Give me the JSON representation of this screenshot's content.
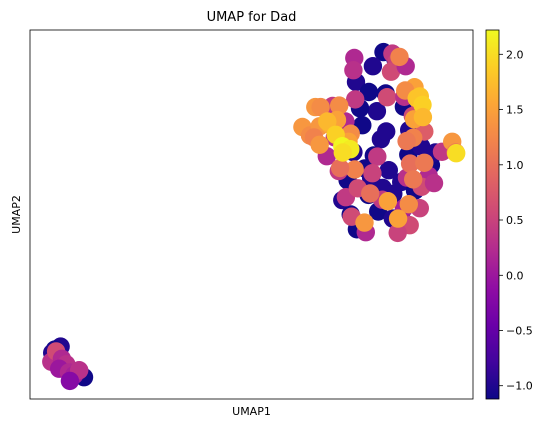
{
  "chart_data": {
    "type": "scatter",
    "title": "UMAP for Dad",
    "xlabel": "UMAP1",
    "ylabel": "UMAP2",
    "xlim": [
      0,
      100
    ],
    "ylim": [
      0,
      100
    ],
    "grid": false,
    "legend": "none",
    "colorbar": {
      "colormap": "plasma",
      "range": [
        -1.12,
        2.22
      ],
      "ticks": [
        -1.0,
        -0.5,
        0.0,
        0.5,
        1.0,
        1.5,
        2.0
      ],
      "tick_labels": [
        "−1.0",
        "−0.5",
        "0.0",
        "0.5",
        "1.0",
        "1.5",
        "2.0"
      ],
      "location": "right"
    },
    "points": [
      {
        "x": 6.9,
        "y": 14.2,
        "v": -1.0
      },
      {
        "x": 5.6,
        "y": 13.4,
        "v": -1.1
      },
      {
        "x": 5.0,
        "y": 12.5,
        "v": -1.0
      },
      {
        "x": 12.2,
        "y": 5.9,
        "v": -1.1
      },
      {
        "x": 4.8,
        "y": 10.1,
        "v": 0.3
      },
      {
        "x": 5.9,
        "y": 12.9,
        "v": 0.6
      },
      {
        "x": 7.2,
        "y": 10.9,
        "v": 0.2
      },
      {
        "x": 8.2,
        "y": 9.4,
        "v": 0.3
      },
      {
        "x": 6.6,
        "y": 8.2,
        "v": 0.0
      },
      {
        "x": 8.8,
        "y": 7.2,
        "v": 0.2
      },
      {
        "x": 10.0,
        "y": 6.5,
        "v": 0.1
      },
      {
        "x": 11.1,
        "y": 7.8,
        "v": 0.3
      },
      {
        "x": 9.0,
        "y": 4.9,
        "v": -0.2
      },
      {
        "x": 79.8,
        "y": 94.0,
        "v": -1.1
      },
      {
        "x": 77.4,
        "y": 90.2,
        "v": -1.0
      },
      {
        "x": 82.5,
        "y": 92.0,
        "v": -1.1
      },
      {
        "x": 73.6,
        "y": 85.9,
        "v": -1.0
      },
      {
        "x": 76.5,
        "y": 83.2,
        "v": -1.1
      },
      {
        "x": 78.3,
        "y": 78.0,
        "v": -1.0
      },
      {
        "x": 75.0,
        "y": 74.2,
        "v": -1.1
      },
      {
        "x": 79.2,
        "y": 70.4,
        "v": -1.0
      },
      {
        "x": 77.6,
        "y": 66.0,
        "v": -1.1
      },
      {
        "x": 81.0,
        "y": 62.0,
        "v": -1.0
      },
      {
        "x": 75.6,
        "y": 62.5,
        "v": -1.1
      },
      {
        "x": 79.6,
        "y": 57.2,
        "v": -1.0
      },
      {
        "x": 76.4,
        "y": 55.3,
        "v": -1.1
      },
      {
        "x": 82.0,
        "y": 55.6,
        "v": -1.0
      },
      {
        "x": 78.6,
        "y": 50.8,
        "v": -1.1
      },
      {
        "x": 81.9,
        "y": 48.9,
        "v": -1.0
      },
      {
        "x": 73.8,
        "y": 46.0,
        "v": -1.1
      },
      {
        "x": 83.8,
        "y": 58.8,
        "v": -1.0
      },
      {
        "x": 85.4,
        "y": 66.2,
        "v": -1.1
      },
      {
        "x": 88.3,
        "y": 68.4,
        "v": -1.0
      },
      {
        "x": 90.5,
        "y": 63.4,
        "v": -1.1
      },
      {
        "x": 91.5,
        "y": 66.8,
        "v": -1.0
      },
      {
        "x": 84.4,
        "y": 79.2,
        "v": -1.1
      },
      {
        "x": 85.6,
        "y": 72.9,
        "v": -1.0
      },
      {
        "x": 80.3,
        "y": 82.8,
        "v": -1.1
      },
      {
        "x": 73.0,
        "y": 66.9,
        "v": -1.0
      },
      {
        "x": 71.7,
        "y": 59.3,
        "v": -1.1
      },
      {
        "x": 70.5,
        "y": 53.9,
        "v": -1.0
      },
      {
        "x": 72.4,
        "y": 50.0,
        "v": -1.1
      },
      {
        "x": 84.8,
        "y": 47.5,
        "v": -1.0
      },
      {
        "x": 86.9,
        "y": 56.5,
        "v": -1.1
      },
      {
        "x": 80.4,
        "y": 72.5,
        "v": -1.0
      },
      {
        "x": 74.5,
        "y": 78.8,
        "v": -1.1
      },
      {
        "x": 77.0,
        "y": 60.0,
        "v": -1.0
      },
      {
        "x": 73.2,
        "y": 92.4,
        "v": 0.2
      },
      {
        "x": 81.8,
        "y": 93.6,
        "v": 0.4
      },
      {
        "x": 73.0,
        "y": 89.1,
        "v": 0.3
      },
      {
        "x": 82.7,
        "y": 91.3,
        "v": 0.5
      },
      {
        "x": 81.5,
        "y": 88.7,
        "v": 0.6
      },
      {
        "x": 84.8,
        "y": 90.2,
        "v": 0.2
      },
      {
        "x": 73.4,
        "y": 81.2,
        "v": 0.4
      },
      {
        "x": 80.6,
        "y": 81.8,
        "v": 0.6
      },
      {
        "x": 84.5,
        "y": 81.9,
        "v": 0.3
      },
      {
        "x": 88.0,
        "y": 80.0,
        "v": 0.4
      },
      {
        "x": 86.4,
        "y": 76.7,
        "v": 0.6
      },
      {
        "x": 89.0,
        "y": 72.5,
        "v": 0.8
      },
      {
        "x": 93.0,
        "y": 67.0,
        "v": 0.4
      },
      {
        "x": 90.0,
        "y": 60.5,
        "v": 0.2
      },
      {
        "x": 85.1,
        "y": 60.0,
        "v": 0.3
      },
      {
        "x": 88.4,
        "y": 57.5,
        "v": 0.6
      },
      {
        "x": 84.4,
        "y": 51.7,
        "v": 0.1
      },
      {
        "x": 88.0,
        "y": 51.7,
        "v": 0.5
      },
      {
        "x": 85.7,
        "y": 47.1,
        "v": 0.6
      },
      {
        "x": 83.0,
        "y": 45.0,
        "v": 0.5
      },
      {
        "x": 75.8,
        "y": 45.2,
        "v": 0.2
      },
      {
        "x": 72.6,
        "y": 49.4,
        "v": 0.6
      },
      {
        "x": 71.3,
        "y": 54.7,
        "v": 0.4
      },
      {
        "x": 74.0,
        "y": 57.1,
        "v": 0.6
      },
      {
        "x": 69.7,
        "y": 61.8,
        "v": 0.4
      },
      {
        "x": 67.0,
        "y": 65.8,
        "v": 0.2
      },
      {
        "x": 68.8,
        "y": 70.9,
        "v": 0.3
      },
      {
        "x": 71.2,
        "y": 75.2,
        "v": 0.2
      },
      {
        "x": 78.4,
        "y": 65.7,
        "v": 0.4
      },
      {
        "x": 77.3,
        "y": 61.2,
        "v": 0.5
      },
      {
        "x": 79.5,
        "y": 54.0,
        "v": 0.4
      },
      {
        "x": 68.3,
        "y": 79.4,
        "v": 0.4
      },
      {
        "x": 91.2,
        "y": 58.5,
        "v": 0.3
      },
      {
        "x": 83.4,
        "y": 92.7,
        "v": 1.2
      },
      {
        "x": 86.8,
        "y": 84.5,
        "v": 1.5
      },
      {
        "x": 84.7,
        "y": 83.6,
        "v": 1.3
      },
      {
        "x": 87.3,
        "y": 81.5,
        "v": 1.8
      },
      {
        "x": 86.7,
        "y": 75.8,
        "v": 1.5
      },
      {
        "x": 86.5,
        "y": 70.8,
        "v": 1.2
      },
      {
        "x": 85.0,
        "y": 69.9,
        "v": 1.1
      },
      {
        "x": 85.8,
        "y": 63.8,
        "v": 1.0
      },
      {
        "x": 89.0,
        "y": 64.0,
        "v": 1.1
      },
      {
        "x": 95.3,
        "y": 69.7,
        "v": 1.4
      },
      {
        "x": 96.1,
        "y": 66.8,
        "v": 1.1
      },
      {
        "x": 86.5,
        "y": 59.5,
        "v": 1.1
      },
      {
        "x": 80.8,
        "y": 53.6,
        "v": 1.5
      },
      {
        "x": 85.5,
        "y": 52.8,
        "v": 1.3
      },
      {
        "x": 83.1,
        "y": 48.9,
        "v": 1.5
      },
      {
        "x": 75.5,
        "y": 47.8,
        "v": 1.4
      },
      {
        "x": 76.8,
        "y": 55.7,
        "v": 1.0
      },
      {
        "x": 73.3,
        "y": 62.2,
        "v": 1.2
      },
      {
        "x": 70.0,
        "y": 62.6,
        "v": 1.0
      },
      {
        "x": 61.5,
        "y": 73.7,
        "v": 1.4
      },
      {
        "x": 63.2,
        "y": 71.4,
        "v": 1.3
      },
      {
        "x": 64.4,
        "y": 79.1,
        "v": 1.4
      },
      {
        "x": 65.6,
        "y": 79.1,
        "v": 1.3
      },
      {
        "x": 65.4,
        "y": 73.9,
        "v": 1.4
      },
      {
        "x": 64.1,
        "y": 70.9,
        "v": 1.2
      },
      {
        "x": 65.4,
        "y": 68.9,
        "v": 1.4
      },
      {
        "x": 69.8,
        "y": 79.5,
        "v": 1.3
      },
      {
        "x": 67.7,
        "y": 74.4,
        "v": 1.6
      },
      {
        "x": 69.3,
        "y": 75.6,
        "v": 1.5
      },
      {
        "x": 72.4,
        "y": 71.9,
        "v": 1.3
      },
      {
        "x": 71.9,
        "y": 69.7,
        "v": 1.5
      },
      {
        "x": 88.0,
        "y": 82.0,
        "v": 1.8
      },
      {
        "x": 88.6,
        "y": 79.7,
        "v": 1.9
      },
      {
        "x": 88.7,
        "y": 76.4,
        "v": 1.7
      },
      {
        "x": 67.1,
        "y": 75.2,
        "v": 1.7
      },
      {
        "x": 69.0,
        "y": 71.6,
        "v": 1.9
      },
      {
        "x": 70.5,
        "y": 68.5,
        "v": 2.2
      },
      {
        "x": 72.3,
        "y": 67.7,
        "v": 2.1
      },
      {
        "x": 96.2,
        "y": 66.6,
        "v": 2.0
      },
      {
        "x": 70.6,
        "y": 66.8,
        "v": 2.0
      }
    ]
  }
}
